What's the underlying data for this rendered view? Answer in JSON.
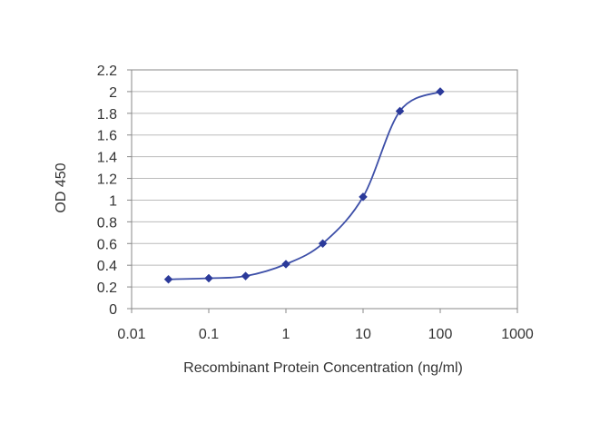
{
  "chart_data": {
    "type": "line",
    "xscale": "log",
    "xlabel": "Recombinant Protein Concentration (ng/ml)",
    "ylabel": "OD 450",
    "xlim": [
      0.01,
      1000
    ],
    "ylim": [
      0,
      2.2
    ],
    "xticks": [
      0.01,
      0.1,
      1,
      10,
      100,
      1000
    ],
    "xtick_labels": [
      "0.01",
      "0.1",
      "1",
      "10",
      "100",
      "1000"
    ],
    "yticks": [
      0,
      0.2,
      0.4,
      0.6,
      0.8,
      1,
      1.2,
      1.4,
      1.6,
      1.8,
      2,
      2.2
    ],
    "ytick_labels": [
      "0",
      "0.2",
      "0.4",
      "0.6",
      "0.8",
      "1",
      "1.2",
      "1.4",
      "1.6",
      "1.8",
      "2",
      "2.2"
    ],
    "grid": "horizontal",
    "legend": "none",
    "series": [
      {
        "x": [
          0.03,
          0.1,
          0.3,
          1,
          3,
          10,
          30,
          100
        ],
        "y": [
          0.27,
          0.28,
          0.3,
          0.41,
          0.6,
          1.03,
          1.82,
          2.0
        ],
        "color": "#3d4fa8"
      }
    ],
    "colors": {
      "line": "#3d4fa8",
      "marker": "#2b3a9a",
      "grid": "#bbbbbb",
      "axis": "#888888"
    }
  }
}
